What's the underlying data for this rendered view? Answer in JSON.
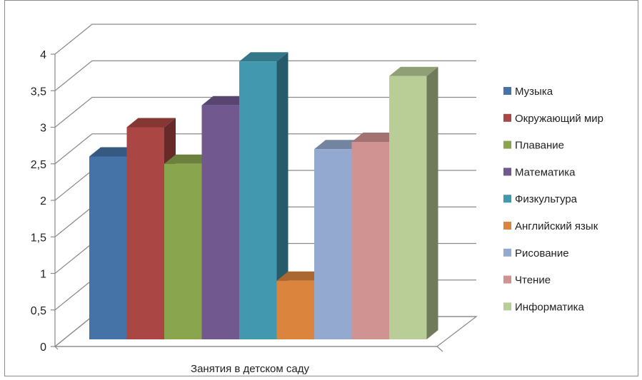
{
  "chart_data": {
    "type": "bar",
    "title": "",
    "xlabel": "",
    "ylabel": "",
    "categories": [
      "Занятия в детском саду"
    ],
    "ylim": [
      0,
      4
    ],
    "yticks": [
      "0",
      "0,5",
      "1",
      "1,5",
      "2",
      "2,5",
      "3",
      "3,5",
      "4"
    ],
    "grid": true,
    "legend_position": "right",
    "style": "3d-clustered-column",
    "series": [
      {
        "name": "Музыка",
        "values": [
          2.6
        ],
        "color": "#4572A7"
      },
      {
        "name": "Окружающий мир",
        "values": [
          3.0
        ],
        "color": "#AA4643"
      },
      {
        "name": "Плавание",
        "values": [
          2.5
        ],
        "color": "#89A54E"
      },
      {
        "name": "Математика",
        "values": [
          3.3
        ],
        "color": "#71588F"
      },
      {
        "name": "Физкультура",
        "values": [
          3.9
        ],
        "color": "#4198AF"
      },
      {
        "name": "Английский язык",
        "values": [
          0.9
        ],
        "color": "#DB843D"
      },
      {
        "name": "Рисование",
        "values": [
          2.7
        ],
        "color": "#93A9CF"
      },
      {
        "name": "Чтение",
        "values": [
          2.8
        ],
        "color": "#D19392"
      },
      {
        "name": "Информатика",
        "values": [
          3.7
        ],
        "color": "#B9CD96"
      }
    ]
  }
}
